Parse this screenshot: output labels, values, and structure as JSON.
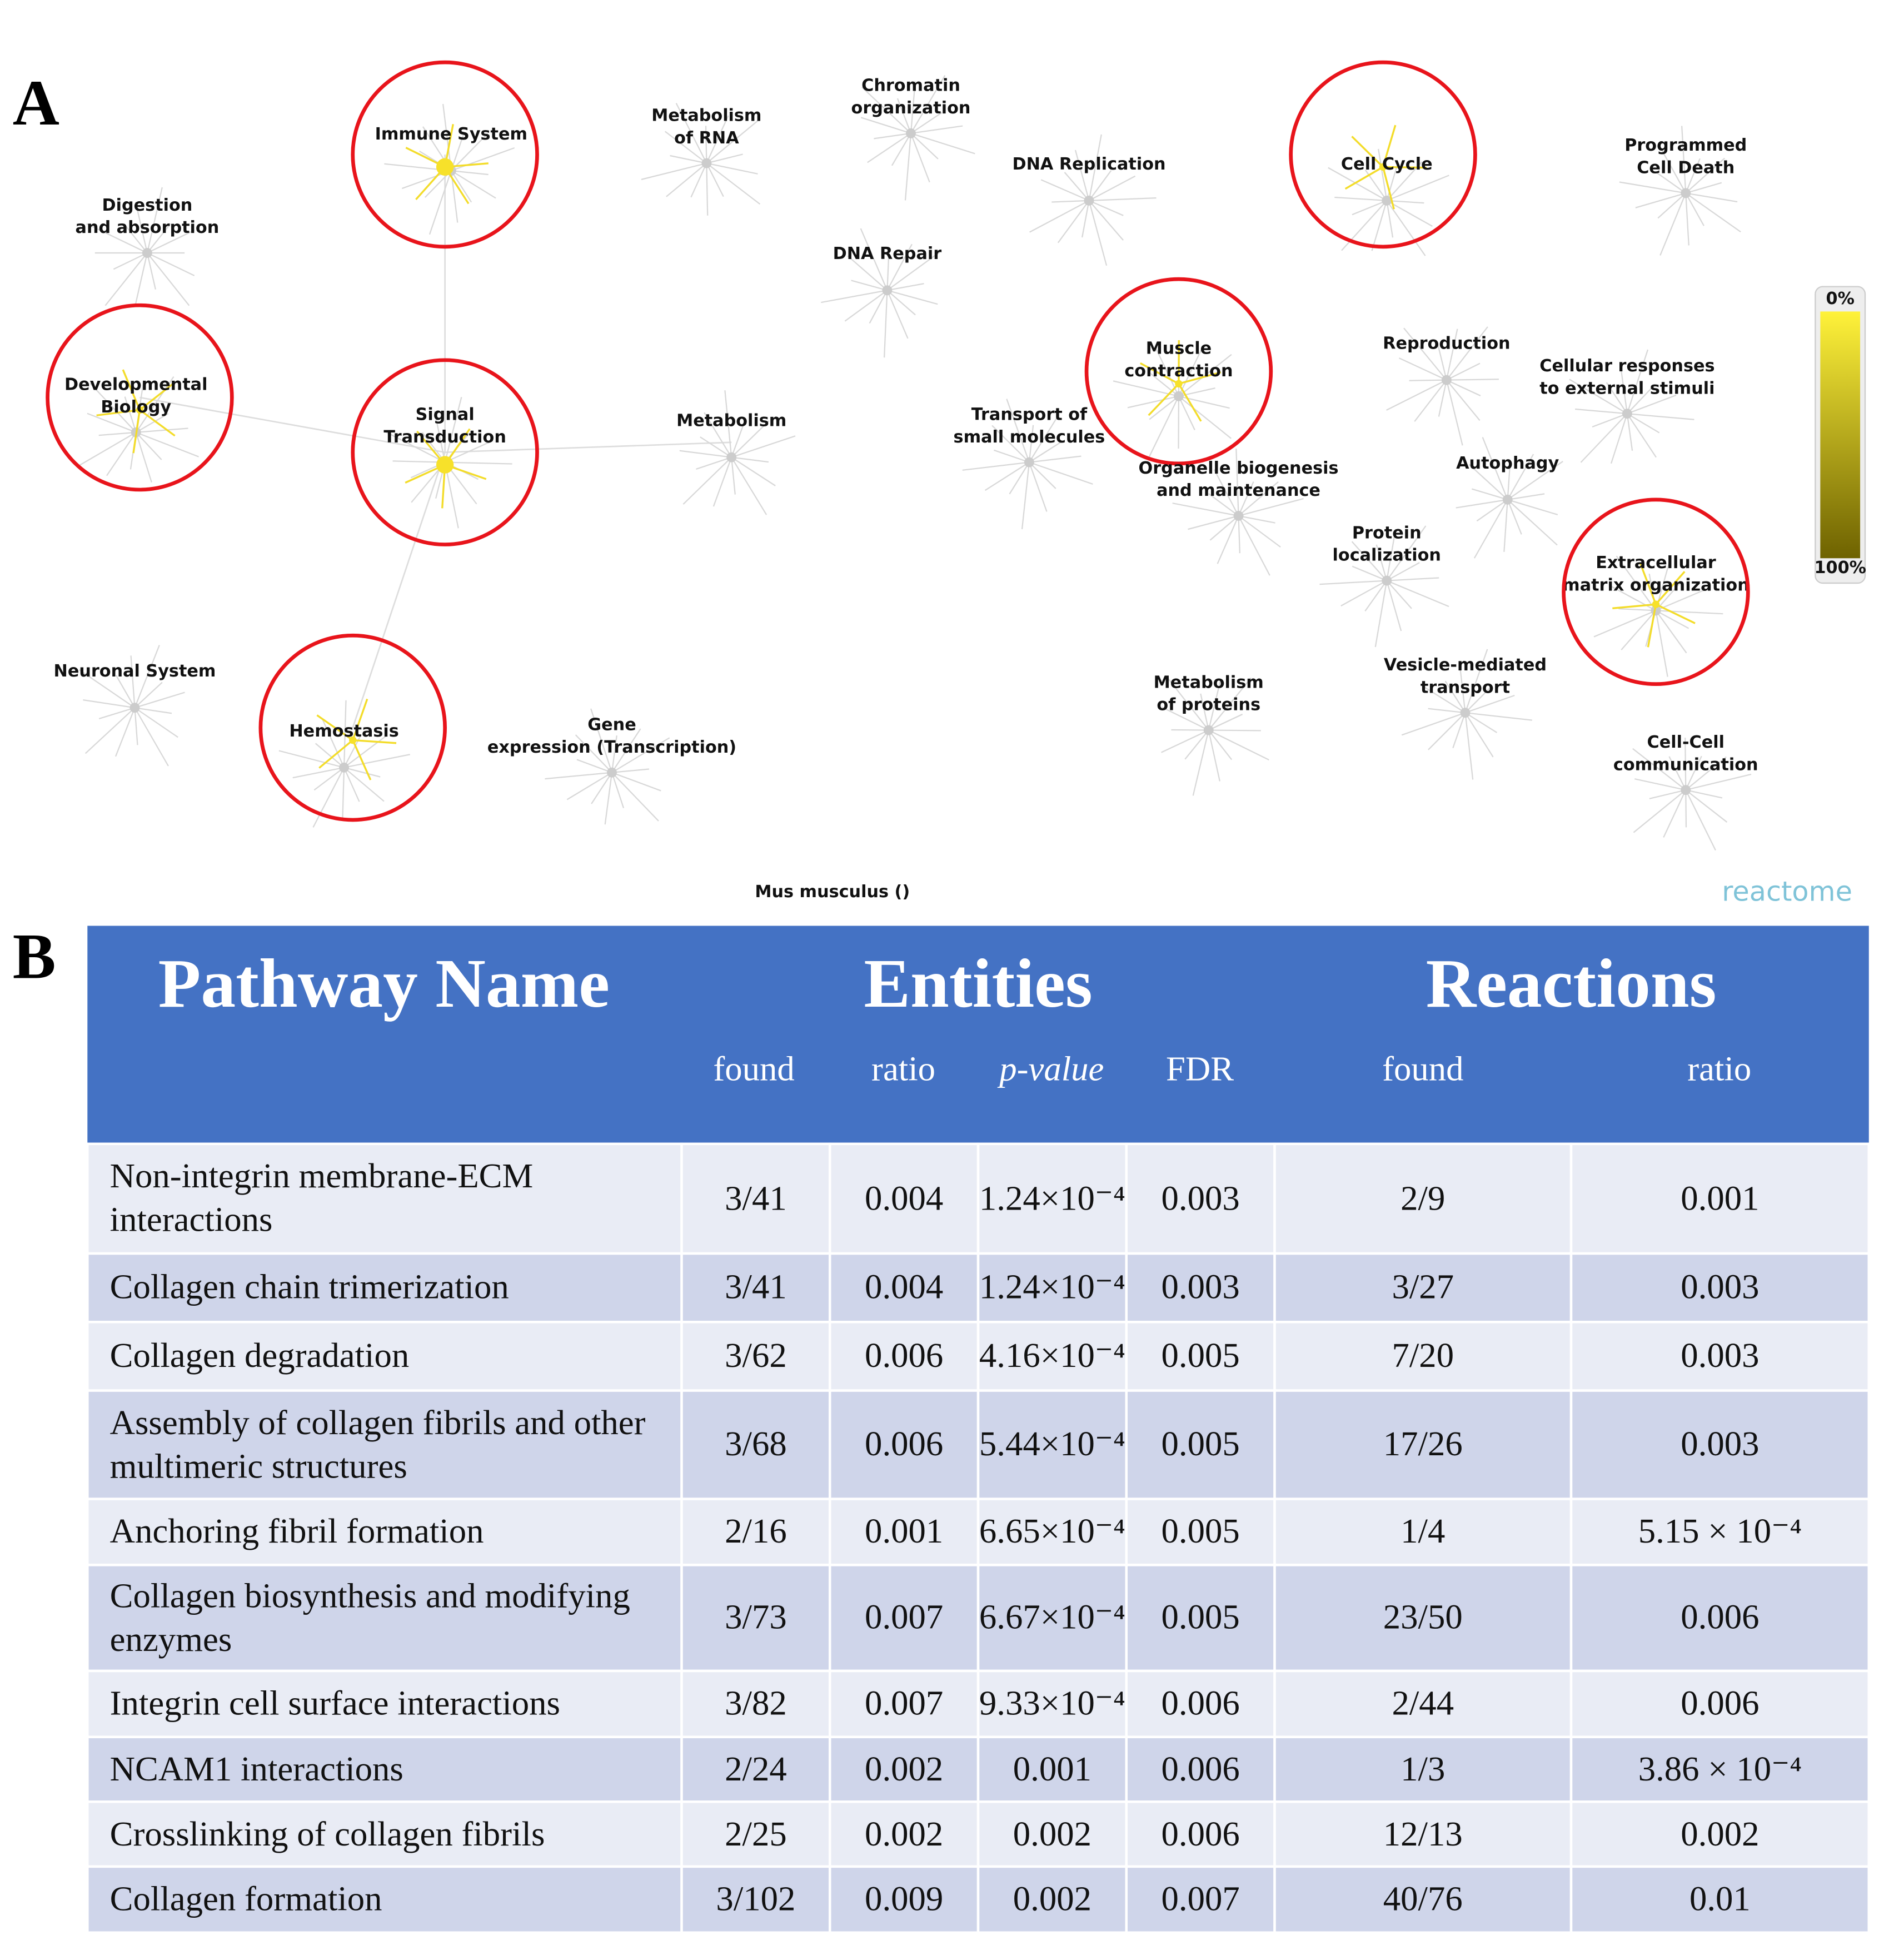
{
  "panel_a": {
    "label": "A",
    "nodes": [
      {
        "label": [
          "Digestion",
          "and absorption"
        ]
      },
      {
        "label": [
          "Immune System"
        ],
        "highlighted": true
      },
      {
        "label": [
          "Metabolism",
          "of RNA"
        ]
      },
      {
        "label": [
          "Chromatin",
          "organization"
        ]
      },
      {
        "label": [
          "DNA Replication"
        ]
      },
      {
        "label": [
          "Cell Cycle"
        ],
        "highlighted": true
      },
      {
        "label": [
          "Programmed",
          "Cell Death"
        ]
      },
      {
        "label": [
          "DNA Repair"
        ]
      },
      {
        "label": [
          "Developmental",
          "Biology"
        ],
        "highlighted": true
      },
      {
        "label": [
          "Signal",
          "Transduction"
        ],
        "highlighted": true
      },
      {
        "label": [
          "Metabolism"
        ]
      },
      {
        "label": [
          "Muscle",
          "contraction"
        ],
        "highlighted": true
      },
      {
        "label": [
          "Transport of",
          "small molecules"
        ]
      },
      {
        "label": [
          "Reproduction"
        ]
      },
      {
        "label": [
          "Cellular responses",
          "to external stimuli"
        ]
      },
      {
        "label": [
          "Organelle biogenesis",
          "and maintenance"
        ]
      },
      {
        "label": [
          "Autophagy"
        ]
      },
      {
        "label": [
          "Protein",
          "localization"
        ]
      },
      {
        "label": [
          "Extracellular",
          "matrix organization"
        ],
        "highlighted": true
      },
      {
        "label": [
          "Neuronal System"
        ]
      },
      {
        "label": [
          "Hemostasis"
        ],
        "highlighted": true
      },
      {
        "label": [
          "Gene",
          "expression (Transcription)"
        ]
      },
      {
        "label": [
          "Metabolism",
          "of proteins"
        ]
      },
      {
        "label": [
          "Vesicle-mediated",
          "transport"
        ]
      },
      {
        "label": [
          "Cell-Cell",
          "communication"
        ]
      }
    ],
    "legend": {
      "top": "0%",
      "bottom": "100%"
    },
    "species": "Mus musculus ()",
    "logo": "reactome"
  },
  "panel_b": {
    "label": "B",
    "table": {
      "groups": [
        "Pathway Name",
        "Entities",
        "Reactions"
      ],
      "columns": [
        "found",
        "ratio",
        "p-value",
        "FDR",
        "found",
        "ratio"
      ],
      "rows": [
        [
          "Non-integrin membrane-ECM interactions",
          "3/41",
          "0.004",
          "1.24×10⁻⁴",
          "0.003",
          "2/9",
          "0.001"
        ],
        [
          "Collagen chain trimerization",
          "3/41",
          "0.004",
          "1.24×10⁻⁴",
          "0.003",
          "3/27",
          "0.003"
        ],
        [
          "Collagen degradation",
          "3/62",
          "0.006",
          "4.16×10⁻⁴",
          "0.005",
          "7/20",
          "0.003"
        ],
        [
          "Assembly of collagen fibrils and other multimeric structures",
          "3/68",
          "0.006",
          "5.44×10⁻⁴",
          "0.005",
          "17/26",
          "0.003"
        ],
        [
          "Anchoring fibril formation",
          "2/16",
          "0.001",
          "6.65×10⁻⁴",
          "0.005",
          "1/4",
          "5.15 × 10⁻⁴"
        ],
        [
          "Collagen biosynthesis and modifying enzymes",
          "3/73",
          "0.007",
          "6.67×10⁻⁴",
          "0.005",
          "23/50",
          "0.006"
        ],
        [
          "Integrin cell surface interactions",
          "3/82",
          "0.007",
          "9.33×10⁻⁴",
          "0.006",
          "2/44",
          "0.006"
        ],
        [
          "NCAM1 interactions",
          "2/24",
          "0.002",
          "0.001",
          "0.006",
          "1/3",
          "3.86 × 10⁻⁴"
        ],
        [
          "Crosslinking of collagen fibrils",
          "2/25",
          "0.002",
          "0.002",
          "0.006",
          "12/13",
          "0.002"
        ],
        [
          "Collagen formation",
          "3/102",
          "0.009",
          "0.002",
          "0.007",
          "40/76",
          "0.01"
        ]
      ]
    }
  }
}
